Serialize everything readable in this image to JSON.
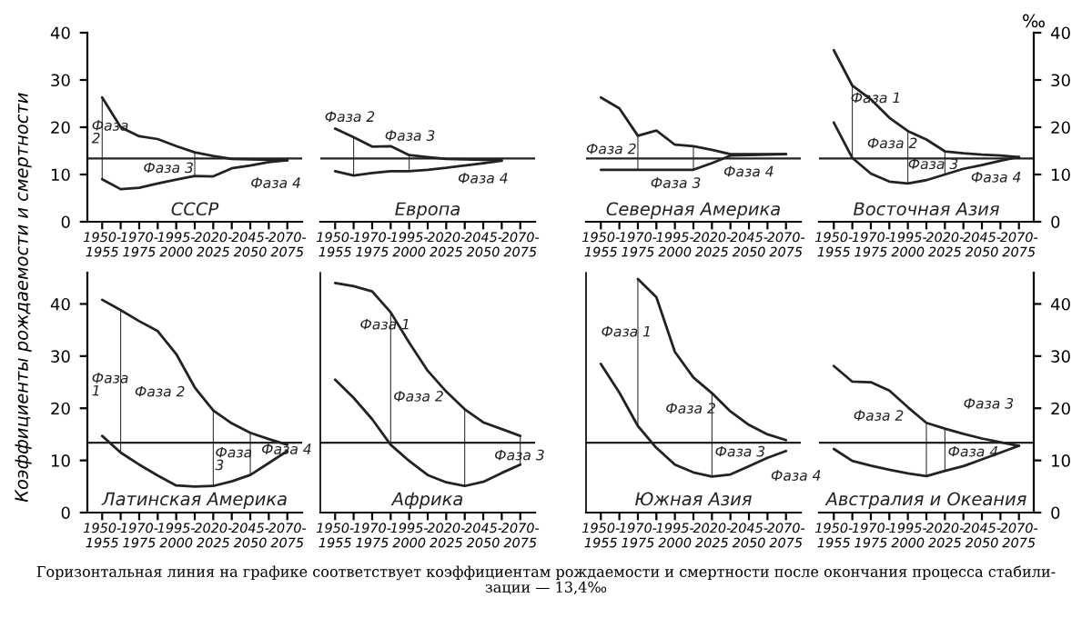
{
  "chart_data": [
    {
      "type": "line",
      "title": "СССР",
      "ylabel": "Коэффициенты рождаемости и смертности",
      "categories": [
        "1950-\n1955",
        null,
        "1970-\n1975",
        null,
        "1995-\n2000",
        null,
        "2020-\n2025",
        null,
        "2045-\n2050",
        null,
        "2070-\n2075"
      ],
      "ylim": [
        0,
        40
      ],
      "yticks": [
        0,
        10,
        20,
        30,
        40
      ],
      "series": [
        {
          "color": "#222222",
          "values": [
            26.3,
            20,
            18.1,
            17.5,
            16,
            14.7,
            13.9,
            13.3,
            13.2,
            13.1,
            13
          ]
        },
        {
          "color": "#222222",
          "values": [
            9,
            6.9,
            7.2,
            8.1,
            8.9,
            9.7,
            9.6,
            11.3,
            11.9,
            12.6,
            13
          ]
        },
        {
          "type": "bar",
          "color": "#222222",
          "base": [
            9,
            null,
            null,
            null,
            null,
            9.7,
            null,
            null,
            null,
            null,
            null
          ],
          "values": [
            17.3,
            null,
            null,
            null,
            null,
            5,
            null,
            null,
            null,
            null,
            null
          ]
        }
      ],
      "ref_lines": [
        {
          "axis": "y",
          "value": 13.4
        }
      ],
      "annotations": [
        "Фаза\n2",
        "Фаза 3",
        "Фаза 4",
        "Горизонтальная линия на графике соответствует коэффициентам рождаемости и смертности после окончания процесса стабили-\nзации — 13,4‰"
      ]
    },
    {
      "type": "line",
      "title": "Европа",
      "tick_labels": "x",
      "categories": [
        "1950-\n1955",
        null,
        "1970-\n1975",
        null,
        "1995-\n2000",
        null,
        "2020-\n2025",
        null,
        "2045-\n2050",
        null,
        "2070-\n2075"
      ],
      "ylim": [
        0,
        40
      ],
      "series": [
        {
          "color": "#222222",
          "values": [
            19.7,
            17.9,
            15.9,
            16,
            14.1,
            13.7,
            13.3,
            13.2,
            13.1,
            13,
            null
          ]
        },
        {
          "color": "#222222",
          "values": [
            10.7,
            9.8,
            10.3,
            10.7,
            10.7,
            11,
            11.4,
            11.9,
            12.4,
            12.9,
            null
          ]
        },
        {
          "type": "bar",
          "color": "#222222",
          "base": [
            null,
            9.8,
            null,
            null,
            10.7,
            null,
            null,
            null,
            null,
            null,
            null
          ],
          "values": [
            null,
            8.1,
            null,
            null,
            3.4,
            null,
            null,
            null,
            null,
            null,
            null
          ]
        }
      ],
      "ref_lines": [
        {
          "axis": "y",
          "value": 13.4
        }
      ],
      "annotations": [
        "Фаза 2",
        "Фаза 3",
        "Фаза 4"
      ]
    },
    {
      "type": "line",
      "title": "Северная Америка",
      "tick_labels": "x",
      "categories": [
        "1950-\n1955",
        null,
        "1970-\n1975",
        null,
        "1995-\n2000",
        null,
        "2020-\n2025",
        null,
        "2045-\n2050",
        null,
        "2070-\n2075"
      ],
      "ylim": [
        0,
        40
      ],
      "series": [
        {
          "color": "#222222",
          "values": [
            26.3,
            24,
            18.2,
            19.3,
            16.3,
            16,
            15.2,
            14.3,
            14.3,
            14.3,
            14.3
          ]
        },
        {
          "color": "#222222",
          "values": [
            11,
            11,
            11,
            11,
            11,
            11,
            12.4,
            14,
            14.1,
            14.2,
            14.3
          ]
        },
        {
          "type": "bar",
          "color": "#222222",
          "base": [
            null,
            null,
            11,
            null,
            null,
            11,
            null,
            null,
            null,
            null,
            null
          ],
          "values": [
            null,
            null,
            7.2,
            null,
            null,
            5,
            null,
            null,
            null,
            null,
            null
          ]
        }
      ],
      "ref_lines": [
        {
          "axis": "y",
          "value": 13.4
        }
      ],
      "annotations": [
        "Фаза 2",
        "Фаза 3",
        "Фаза 4"
      ]
    },
    {
      "type": "line",
      "title": "Восточная Азия",
      "y2label": "‰",
      "categories": [
        "1950-\n1955",
        null,
        "1970-\n1975",
        null,
        "1995-\n2000",
        null,
        "2020-\n2025",
        null,
        "2045-\n2050",
        null,
        "2070-\n2075"
      ],
      "y2lim": [
        0,
        40
      ],
      "y2ticks": [
        0,
        10,
        20,
        30,
        40
      ],
      "series": [
        {
          "color": "#222222",
          "axis": "y2",
          "values": [
            36.3,
            28.8,
            25.9,
            22,
            19.2,
            17.4,
            14.9,
            14.5,
            14.2,
            14,
            13.7
          ]
        },
        {
          "color": "#222222",
          "axis": "y2",
          "values": [
            21,
            13.5,
            10.2,
            8.5,
            8.1,
            8.8,
            10,
            11.2,
            12,
            12.9,
            13.7
          ]
        },
        {
          "type": "bar",
          "color": "#222222",
          "axis": "y2",
          "base": [
            null,
            13.5,
            null,
            null,
            8.1,
            null,
            10,
            null,
            null,
            null,
            null
          ],
          "values": [
            null,
            15.3,
            null,
            null,
            11.1,
            null,
            4.9,
            null,
            null,
            null,
            null
          ]
        }
      ],
      "ref_lines": [
        {
          "axis": "y2",
          "value": 13.4
        }
      ],
      "annotations": [
        "Фаза 1",
        "Фаза 2",
        "Фаза 3",
        "Фаза 4"
      ]
    },
    {
      "type": "line",
      "title": "Латинская Америка",
      "categories": [
        "1950-\n1955",
        null,
        "1970-\n1975",
        null,
        "1995-\n2000",
        null,
        "2020-\n2025",
        null,
        "2045-\n2050",
        null,
        "2070-\n2075"
      ],
      "ylim": [
        0,
        46
      ],
      "yticks": [
        0,
        10,
        20,
        30,
        40
      ],
      "series": [
        {
          "color": "#222222",
          "values": [
            40.8,
            38.8,
            36.7,
            34.8,
            30.4,
            24,
            19.6,
            17.1,
            15.3,
            14.1,
            13
          ]
        },
        {
          "color": "#222222",
          "values": [
            14.7,
            11.5,
            9.2,
            7.1,
            5.2,
            5,
            5.1,
            6,
            7.2,
            9.5,
            11.8
          ]
        },
        {
          "type": "bar",
          "color": "#222222",
          "base": [
            null,
            11.5,
            null,
            null,
            null,
            null,
            5.1,
            null,
            7.2,
            null,
            null
          ],
          "values": [
            null,
            27.3,
            null,
            null,
            null,
            null,
            14.5,
            null,
            8.1,
            null,
            null
          ]
        }
      ],
      "ref_lines": [
        {
          "axis": "y",
          "value": 13.4
        }
      ],
      "annotations": [
        "Фаза\n1",
        "Фаза 2",
        "Фаза\n3",
        "Фаза 4"
      ]
    },
    {
      "type": "line",
      "title": "Африка",
      "tick_labels": "x",
      "categories": [
        "1950-\n1955",
        null,
        "1970-\n1975",
        null,
        "1995-\n2000",
        null,
        "2020-\n2025",
        null,
        "2045-\n2050",
        null,
        "2070-\n2075"
      ],
      "ylim": [
        0,
        46
      ],
      "series": [
        {
          "color": "#222222",
          "values": [
            44,
            43.4,
            42.4,
            38.4,
            32.6,
            27.2,
            23.2,
            19.8,
            17.3,
            16,
            14.7
          ]
        },
        {
          "color": "#222222",
          "values": [
            25.5,
            22,
            17.9,
            13,
            9.9,
            7.2,
            5.8,
            5.1,
            5.9,
            7.6,
            9.2
          ]
        },
        {
          "type": "bar",
          "color": "#222222",
          "base": [
            null,
            null,
            null,
            13,
            null,
            null,
            null,
            5.1,
            null,
            null,
            9.2
          ],
          "values": [
            null,
            null,
            null,
            25.4,
            null,
            null,
            null,
            14.7,
            null,
            null,
            5.5
          ]
        }
      ],
      "ref_lines": [
        {
          "axis": "y",
          "value": 13.4
        }
      ],
      "annotations": [
        "Фаза 1",
        "Фаза 2",
        "Фаза 3"
      ]
    },
    {
      "type": "line",
      "title": "Южная Азия",
      "tick_labels": "x",
      "categories": [
        "1950-\n1955",
        null,
        "1970-\n1975",
        null,
        "1995-\n2000",
        null,
        "2020-\n2025",
        null,
        "2045-\n2050",
        null,
        "2070-\n2075"
      ],
      "ylim": [
        0,
        46
      ],
      "series": [
        {
          "color": "#222222",
          "values": [
            null,
            null,
            44.8,
            41.3,
            30.8,
            25.9,
            22.9,
            19.4,
            16.8,
            15,
            13.9
          ]
        },
        {
          "color": "#222222",
          "values": [
            28.5,
            23,
            16.6,
            12.4,
            9.2,
            7.7,
            6.9,
            7.3,
            8.9,
            10.5,
            11.8
          ]
        },
        {
          "type": "bar",
          "color": "#222222",
          "base": [
            null,
            null,
            16.6,
            null,
            null,
            null,
            6.9,
            null,
            null,
            null,
            null
          ],
          "values": [
            null,
            null,
            28.2,
            null,
            null,
            null,
            16,
            null,
            null,
            null,
            null
          ]
        }
      ],
      "ref_lines": [
        {
          "axis": "y",
          "value": 13.4
        }
      ],
      "annotations": [
        "Фаза 1",
        "Фаза 2",
        "Фаза 3",
        "Фаза 4"
      ]
    },
    {
      "type": "line",
      "title": "Австралия и Океания",
      "categories": [
        "1950-\n1955",
        null,
        "1970-\n1975",
        null,
        "1995-\n2000",
        null,
        "2020-\n2025",
        null,
        "2045-\n2050",
        null,
        "2070-\n2075"
      ],
      "y2lim": [
        0,
        46
      ],
      "y2ticks": [
        0,
        10,
        20,
        30,
        40
      ],
      "series": [
        {
          "color": "#222222",
          "axis": "y2",
          "values": [
            28.1,
            25.1,
            25,
            23.4,
            20.2,
            17.2,
            16.1,
            15.1,
            14.2,
            13.5,
            12.8
          ]
        },
        {
          "color": "#222222",
          "axis": "y2",
          "values": [
            12.2,
            9.9,
            9,
            8.2,
            7.5,
            7,
            8,
            8.9,
            10.2,
            11.5,
            12.8
          ]
        },
        {
          "type": "bar",
          "color": "#222222",
          "axis": "y2",
          "base": [
            null,
            null,
            null,
            null,
            null,
            7,
            8,
            null,
            null,
            null,
            null
          ],
          "values": [
            null,
            null,
            null,
            null,
            null,
            10.2,
            8.1,
            null,
            null,
            null,
            null
          ]
        }
      ],
      "ref_lines": [
        {
          "axis": "y2",
          "value": 13.4
        }
      ],
      "annotations": [
        "Фаза 2",
        "Фаза 3",
        "Фаза 4"
      ]
    }
  ]
}
